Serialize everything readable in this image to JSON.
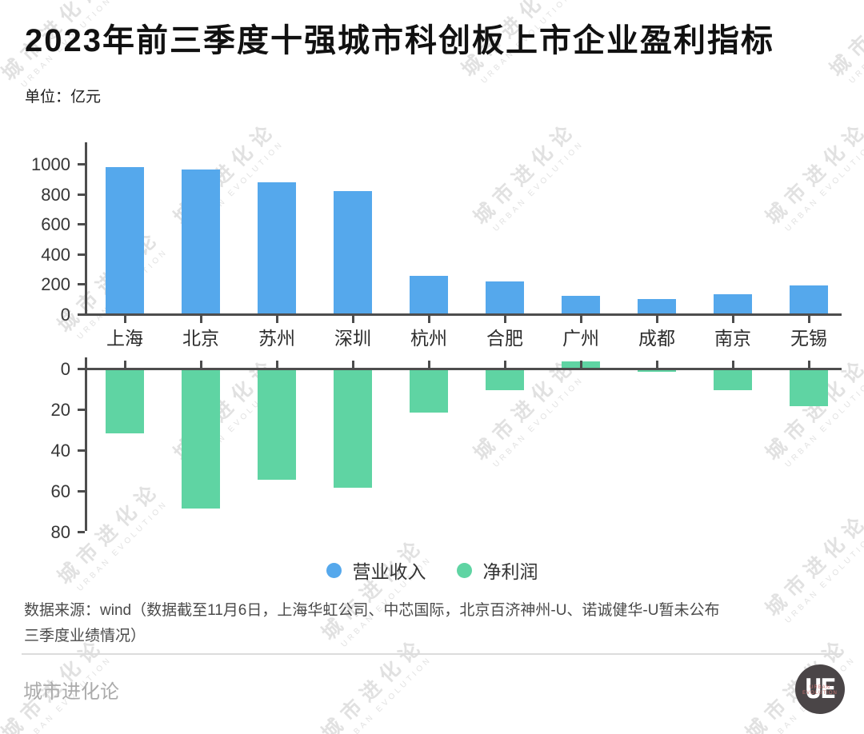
{
  "header": {
    "title": "2023年前三季度十强城市科创板上市企业盈利指标",
    "unit_label": "单位：亿元"
  },
  "chart_data": {
    "type": "bar",
    "title": "2023年前三季度十强城市科创板上市企业盈利指标",
    "unit": "亿元",
    "categories": [
      "上海",
      "北京",
      "苏州",
      "深圳",
      "杭州",
      "合肥",
      "广州",
      "成都",
      "南京",
      "无锡"
    ],
    "series": [
      {
        "name": "营业收入",
        "color": "#55a8ec",
        "axis": "top",
        "values": [
          975,
          956,
          873,
          814,
          250,
          213,
          116,
          96,
          128,
          187
        ]
      },
      {
        "name": "净利润",
        "color": "#5fd4a3",
        "axis": "bottom",
        "values": [
          32,
          69,
          55,
          59,
          22,
          11,
          -3,
          2,
          11,
          19
        ],
        "note": "bottom axis is inverted: positive values are drawn downward; the negative value (广州) is drawn upward above the zero line"
      }
    ],
    "top_axis": {
      "ticks": [
        0,
        200,
        400,
        600,
        800,
        1000
      ]
    },
    "bottom_axis": {
      "ticks": [
        0,
        20,
        40,
        60,
        80
      ],
      "inverted": true
    },
    "legend_position": "bottom",
    "grid": false
  },
  "source": {
    "lines": [
      "数据来源：wind（数据截至11月6日，上海华虹公司、中芯国际，北京百济神州-U、诺诚健华-U暂未公布",
      "三季度业绩情况）"
    ]
  },
  "footer": {
    "brand": "城市进化论",
    "logo_text": "UE",
    "logo_subtext": "URBAN EVOLUTION"
  },
  "watermark": {
    "cn": "城市进化论",
    "en": "URBAN EVOLUTION"
  }
}
